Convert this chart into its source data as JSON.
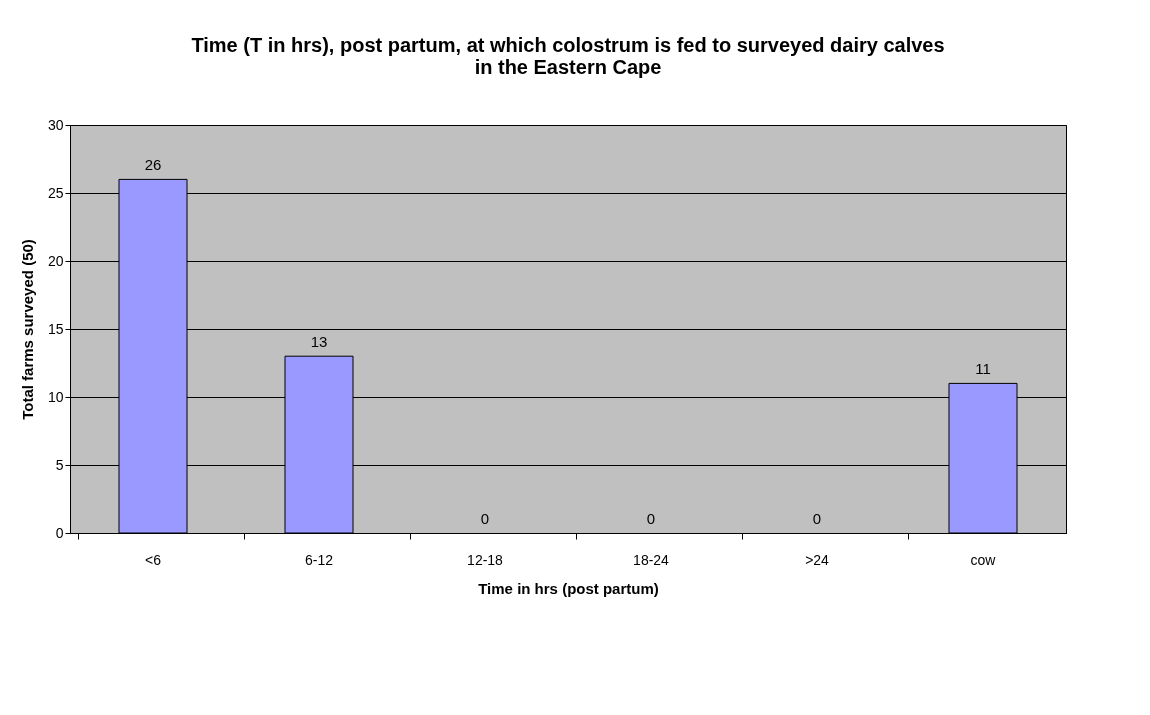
{
  "chart_data": {
    "type": "bar",
    "title": "Time (T in hrs), post partum, at which colostrum is fed to surveyed dairy calves in the Eastern Cape",
    "xlabel": "Time in hrs (post partum)",
    "ylabel": "Total farms surveyed (50)",
    "categories": [
      "<6",
      "6-12",
      "12-18",
      "18-24",
      ">24",
      "cow"
    ],
    "values": [
      26,
      13,
      0,
      0,
      0,
      11
    ],
    "color": "#9999ff",
    "ylim": [
      0,
      30
    ],
    "yticks": [
      0,
      5,
      10,
      15,
      20,
      25,
      30
    ],
    "grid": "y",
    "data_labels": true
  }
}
